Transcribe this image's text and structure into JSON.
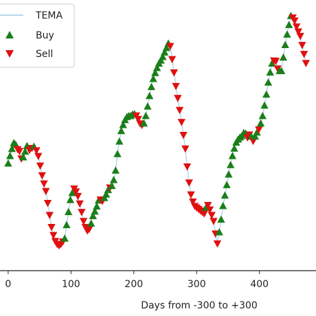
{
  "chart_data": {
    "type": "scatter",
    "xlabel": "Days from -300 to +300",
    "xlim": [
      -13,
      490
    ],
    "ylim": [
      0,
      100
    ],
    "x_ticks": [
      0,
      100,
      200,
      300,
      400
    ],
    "grid": false,
    "legend_placement": "top-left",
    "colors": {
      "tema": "#b7d7ea",
      "buy": "#1a7f1a",
      "sell": "#e01010"
    },
    "legend": [
      {
        "key": "tema",
        "label": "TEMA",
        "marker": "line"
      },
      {
        "key": "buy",
        "label": "Buy",
        "marker": "triangle-up"
      },
      {
        "key": "sell",
        "label": "Sell",
        "marker": "triangle-down"
      }
    ],
    "trend": [
      [
        0,
        39
      ],
      [
        5,
        44
      ],
      [
        10,
        48
      ],
      [
        14,
        45
      ],
      [
        18,
        44
      ],
      [
        22,
        40
      ],
      [
        26,
        43
      ],
      [
        30,
        46
      ],
      [
        35,
        44
      ],
      [
        40,
        46
      ],
      [
        44,
        45
      ],
      [
        48,
        42
      ],
      [
        55,
        33
      ],
      [
        60,
        28
      ],
      [
        65,
        20
      ],
      [
        70,
        12
      ],
      [
        75,
        8
      ],
      [
        80,
        6
      ],
      [
        85,
        7
      ],
      [
        90,
        9
      ],
      [
        95,
        18
      ],
      [
        100,
        26
      ],
      [
        105,
        29
      ],
      [
        110,
        27
      ],
      [
        115,
        22
      ],
      [
        120,
        16
      ],
      [
        125,
        12
      ],
      [
        130,
        13
      ],
      [
        135,
        18
      ],
      [
        140,
        21
      ],
      [
        145,
        25
      ],
      [
        150,
        24
      ],
      [
        155,
        26
      ],
      [
        160,
        29
      ],
      [
        165,
        30
      ],
      [
        170,
        34
      ],
      [
        175,
        45
      ],
      [
        180,
        52
      ],
      [
        185,
        56
      ],
      [
        190,
        58
      ],
      [
        195,
        58
      ],
      [
        200,
        59
      ],
      [
        205,
        58
      ],
      [
        210,
        55
      ],
      [
        215,
        54
      ],
      [
        220,
        59
      ],
      [
        225,
        66
      ],
      [
        230,
        72
      ],
      [
        235,
        76
      ],
      [
        240,
        79
      ],
      [
        245,
        81
      ],
      [
        250,
        84
      ],
      [
        255,
        87
      ],
      [
        258,
        86
      ],
      [
        262,
        79
      ],
      [
        267,
        70
      ],
      [
        272,
        62
      ],
      [
        277,
        54
      ],
      [
        282,
        45
      ],
      [
        287,
        33
      ],
      [
        292,
        25
      ],
      [
        297,
        22
      ],
      [
        302,
        21
      ],
      [
        307,
        20
      ],
      [
        312,
        19
      ],
      [
        317,
        23
      ],
      [
        322,
        20
      ],
      [
        327,
        16
      ],
      [
        330,
        11
      ],
      [
        333,
        7
      ],
      [
        337,
        13
      ],
      [
        342,
        22
      ],
      [
        347,
        29
      ],
      [
        352,
        36
      ],
      [
        357,
        42
      ],
      [
        362,
        47
      ],
      [
        367,
        49
      ],
      [
        372,
        50
      ],
      [
        377,
        52
      ],
      [
        380,
        49
      ],
      [
        385,
        51
      ],
      [
        390,
        48
      ],
      [
        395,
        51
      ],
      [
        400,
        53
      ],
      [
        405,
        58
      ],
      [
        410,
        65
      ],
      [
        415,
        73
      ],
      [
        420,
        79
      ],
      [
        425,
        81
      ],
      [
        430,
        76
      ],
      [
        435,
        76
      ],
      [
        440,
        85
      ],
      [
        445,
        92
      ],
      [
        450,
        98
      ],
      [
        455,
        97
      ],
      [
        460,
        93
      ],
      [
        465,
        90
      ],
      [
        470,
        84
      ],
      [
        475,
        78
      ]
    ],
    "signals": [
      [
        "buy",
        0
      ],
      [
        "buy",
        3
      ],
      [
        "buy",
        6
      ],
      [
        "buy",
        9
      ],
      [
        "buy",
        12
      ],
      [
        "sell",
        15
      ],
      [
        "sell",
        18
      ],
      [
        "sell",
        21
      ],
      [
        "buy",
        24
      ],
      [
        "buy",
        27
      ],
      [
        "buy",
        30
      ],
      [
        "sell",
        34
      ],
      [
        "sell",
        38
      ],
      [
        "buy",
        41
      ],
      [
        "sell",
        45
      ],
      [
        "sell",
        48
      ],
      [
        "sell",
        51
      ],
      [
        "sell",
        54
      ],
      [
        "sell",
        57
      ],
      [
        "sell",
        60
      ],
      [
        "sell",
        63
      ],
      [
        "sell",
        66
      ],
      [
        "sell",
        69
      ],
      [
        "sell",
        72
      ],
      [
        "sell",
        75
      ],
      [
        "sell",
        78
      ],
      [
        "sell",
        81
      ],
      [
        "sell",
        84
      ],
      [
        "sell",
        87
      ],
      [
        "buy",
        90
      ],
      [
        "buy",
        93
      ],
      [
        "buy",
        96
      ],
      [
        "buy",
        99
      ],
      [
        "buy",
        102
      ],
      [
        "sell",
        105
      ],
      [
        "sell",
        108
      ],
      [
        "sell",
        111
      ],
      [
        "sell",
        114
      ],
      [
        "sell",
        117
      ],
      [
        "sell",
        120
      ],
      [
        "sell",
        123
      ],
      [
        "sell",
        126
      ],
      [
        "sell",
        129
      ],
      [
        "buy",
        132
      ],
      [
        "buy",
        135
      ],
      [
        "buy",
        138
      ],
      [
        "buy",
        141
      ],
      [
        "buy",
        144
      ],
      [
        "sell",
        147
      ],
      [
        "sell",
        150
      ],
      [
        "buy",
        153
      ],
      [
        "buy",
        156
      ],
      [
        "buy",
        159
      ],
      [
        "sell",
        162
      ],
      [
        "buy",
        165
      ],
      [
        "buy",
        168
      ],
      [
        "buy",
        171
      ],
      [
        "buy",
        174
      ],
      [
        "buy",
        177
      ],
      [
        "buy",
        180
      ],
      [
        "buy",
        183
      ],
      [
        "buy",
        186
      ],
      [
        "buy",
        189
      ],
      [
        "buy",
        192
      ],
      [
        "buy",
        195
      ],
      [
        "buy",
        198
      ],
      [
        "buy",
        201
      ],
      [
        "sell",
        204
      ],
      [
        "sell",
        207
      ],
      [
        "sell",
        210
      ],
      [
        "sell",
        213
      ],
      [
        "buy",
        216
      ],
      [
        "buy",
        219
      ],
      [
        "buy",
        222
      ],
      [
        "buy",
        225
      ],
      [
        "buy",
        228
      ],
      [
        "buy",
        231
      ],
      [
        "buy",
        234
      ],
      [
        "buy",
        237
      ],
      [
        "buy",
        240
      ],
      [
        "buy",
        243
      ],
      [
        "buy",
        246
      ],
      [
        "buy",
        249
      ],
      [
        "buy",
        252
      ],
      [
        "buy",
        255
      ],
      [
        "sell",
        258
      ],
      [
        "sell",
        261
      ],
      [
        "sell",
        264
      ],
      [
        "sell",
        267
      ],
      [
        "sell",
        270
      ],
      [
        "sell",
        273
      ],
      [
        "sell",
        276
      ],
      [
        "sell",
        279
      ],
      [
        "sell",
        282
      ],
      [
        "sell",
        285
      ],
      [
        "sell",
        288
      ],
      [
        "sell",
        291
      ],
      [
        "sell",
        294
      ],
      [
        "sell",
        297
      ],
      [
        "sell",
        300
      ],
      [
        "sell",
        303
      ],
      [
        "sell",
        306
      ],
      [
        "sell",
        309
      ],
      [
        "sell",
        312
      ],
      [
        "buy",
        315
      ],
      [
        "sell",
        318
      ],
      [
        "sell",
        321
      ],
      [
        "sell",
        324
      ],
      [
        "sell",
        327
      ],
      [
        "sell",
        330
      ],
      [
        "sell",
        333
      ],
      [
        "buy",
        336
      ],
      [
        "buy",
        339
      ],
      [
        "buy",
        342
      ],
      [
        "buy",
        345
      ],
      [
        "buy",
        348
      ],
      [
        "buy",
        351
      ],
      [
        "buy",
        354
      ],
      [
        "buy",
        357
      ],
      [
        "buy",
        360
      ],
      [
        "buy",
        363
      ],
      [
        "buy",
        366
      ],
      [
        "buy",
        369
      ],
      [
        "buy",
        372
      ],
      [
        "buy",
        375
      ],
      [
        "buy",
        378
      ],
      [
        "sell",
        381
      ],
      [
        "sell",
        384
      ],
      [
        "buy",
        387
      ],
      [
        "sell",
        390
      ],
      [
        "buy",
        393
      ],
      [
        "buy",
        396
      ],
      [
        "sell",
        399
      ],
      [
        "buy",
        402
      ],
      [
        "buy",
        405
      ],
      [
        "buy",
        408
      ],
      [
        "buy",
        411
      ],
      [
        "buy",
        414
      ],
      [
        "buy",
        417
      ],
      [
        "buy",
        420
      ],
      [
        "sell",
        423
      ],
      [
        "sell",
        426
      ],
      [
        "sell",
        429
      ],
      [
        "buy",
        432
      ],
      [
        "buy",
        435
      ],
      [
        "buy",
        438
      ],
      [
        "buy",
        441
      ],
      [
        "buy",
        444
      ],
      [
        "buy",
        447
      ],
      [
        "buy",
        450
      ],
      [
        "sell",
        453
      ],
      [
        "sell",
        456
      ],
      [
        "sell",
        459
      ],
      [
        "sell",
        462
      ],
      [
        "sell",
        465
      ],
      [
        "sell",
        468
      ],
      [
        "sell",
        471
      ],
      [
        "sell",
        474
      ]
    ]
  }
}
